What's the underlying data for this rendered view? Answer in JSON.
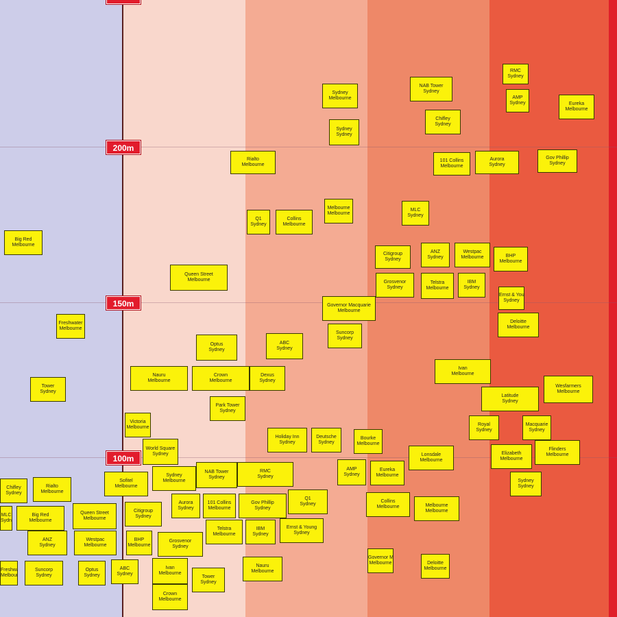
{
  "axis": {
    "ticks": [
      "",
      "200m",
      "150m",
      "100m"
    ]
  },
  "labels": [
    {
      "name": "Sydney",
      "city": "Melbourne"
    },
    {
      "name": "NAB Tower",
      "city": "Sydney"
    },
    {
      "name": "RMC",
      "city": "Sydney"
    },
    {
      "name": "AMP",
      "city": "Sydney"
    },
    {
      "name": "Eureka",
      "city": "Melbourne"
    },
    {
      "name": "Sydney",
      "city": "Sydney"
    },
    {
      "name": "Chifley",
      "city": "Sydney"
    },
    {
      "name": "Rialto",
      "city": "Melbourne"
    },
    {
      "name": "101 Collins",
      "city": "Melbourne"
    },
    {
      "name": "Aurora",
      "city": "Sydney"
    },
    {
      "name": "Gov Phillip",
      "city": "Sydney"
    },
    {
      "name": "Q1",
      "city": "Sydney"
    },
    {
      "name": "Collins",
      "city": "Melbourne"
    },
    {
      "name": "Melbourne",
      "city": "Melbourne"
    },
    {
      "name": "MLC",
      "city": "Sydney"
    },
    {
      "name": "Big Red",
      "city": "Melbourne"
    },
    {
      "name": "Queen Street",
      "city": "Melbourne"
    },
    {
      "name": "Citigroup",
      "city": "Sydney"
    },
    {
      "name": "ANZ",
      "city": "Sydney"
    },
    {
      "name": "Westpac",
      "city": "Melbourne"
    },
    {
      "name": "BHP",
      "city": "Melbourne"
    },
    {
      "name": "Grosvenor",
      "city": "Sydney"
    },
    {
      "name": "Telstra",
      "city": "Melbourne"
    },
    {
      "name": "IBM",
      "city": "Sydney"
    },
    {
      "name": "Ernst & Young",
      "city": "Sydney"
    },
    {
      "name": "Governor Macquarie",
      "city": "Melbourne"
    },
    {
      "name": "Deloitte",
      "city": "Melbourne"
    },
    {
      "name": "Freshwater",
      "city": "Melbourne"
    },
    {
      "name": "Suncorp",
      "city": "Sydney"
    },
    {
      "name": "Optus",
      "city": "Sydney"
    },
    {
      "name": "ABC",
      "city": "Sydney"
    },
    {
      "name": "Ivan",
      "city": "Melbourne"
    },
    {
      "name": "Tower",
      "city": "Sydney"
    },
    {
      "name": "Nauru",
      "city": "Melbourne"
    },
    {
      "name": "Crown",
      "city": "Melbourne"
    },
    {
      "name": "Dexus",
      "city": "Sydney"
    },
    {
      "name": "Wesfarmers",
      "city": "Melbourne"
    },
    {
      "name": "Latitude",
      "city": "Sydney"
    },
    {
      "name": "Park Tower",
      "city": "Sydney"
    },
    {
      "name": "Victoria",
      "city": "Melbourne"
    },
    {
      "name": "Holiday Inn",
      "city": "Sydney"
    },
    {
      "name": "Deutsche",
      "city": "Sydney"
    },
    {
      "name": "Bourke",
      "city": "Melbourne"
    },
    {
      "name": "Royal",
      "city": "Sydney"
    },
    {
      "name": "Macquarie",
      "city": "Sydney"
    },
    {
      "name": "World Square",
      "city": "Sydney"
    },
    {
      "name": "Lonsdale",
      "city": "Melbourne"
    },
    {
      "name": "Elizabeth",
      "city": "Melbourne"
    },
    {
      "name": "Flinders",
      "city": "Melbourne"
    },
    {
      "name": "Sofitel",
      "city": "Melbourne"
    }
  ]
}
